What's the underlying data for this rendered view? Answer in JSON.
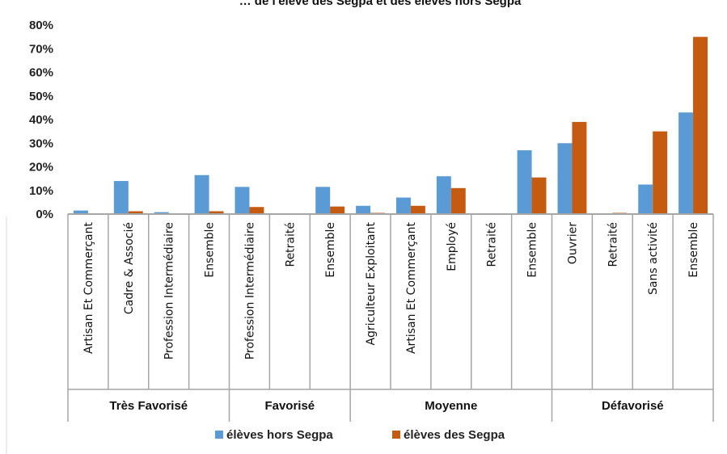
{
  "chart_data": {
    "type": "bar",
    "title": "… de l'élève des Segpa et des élèves hors Segpa",
    "ylim": [
      0,
      80
    ],
    "yticks": [
      "0%",
      "10%",
      "20%",
      "30%",
      "40%",
      "50%",
      "60%",
      "70%",
      "80%"
    ],
    "grid": false,
    "legend_position": "bottom",
    "groups": [
      {
        "name": "Très Favorisé",
        "categories": [
          "Artisan Et Commerçant",
          "Cadre & Associé",
          "Profession Intermédiaire",
          "Ensemble"
        ]
      },
      {
        "name": "Favorisé",
        "categories": [
          "Profession Intermédiaire",
          "Retraité",
          "Ensemble"
        ]
      },
      {
        "name": "Moyenne",
        "categories": [
          "Agriculteur Exploitant",
          "Artisan Et Commerçant",
          "Employé",
          "Retraité",
          "Ensemble"
        ]
      },
      {
        "name": "Défavorisé",
        "categories": [
          "Ouvrier",
          "Retraité",
          "Sans activité",
          "Ensemble"
        ]
      }
    ],
    "series": [
      {
        "name": "élèves hors Segpa",
        "color": "#5B9BD5",
        "values": [
          1.5,
          14,
          0.8,
          16.5,
          11.5,
          0,
          11.5,
          3.5,
          7,
          16,
          0,
          27,
          30,
          0,
          12.5,
          43
        ]
      },
      {
        "name": "élèves des Segpa",
        "color": "#C55A11",
        "values": [
          0,
          1.2,
          0,
          1.2,
          3,
          0,
          3.2,
          0.5,
          3.5,
          11,
          0,
          15.5,
          39,
          0.5,
          35,
          75
        ]
      }
    ]
  }
}
